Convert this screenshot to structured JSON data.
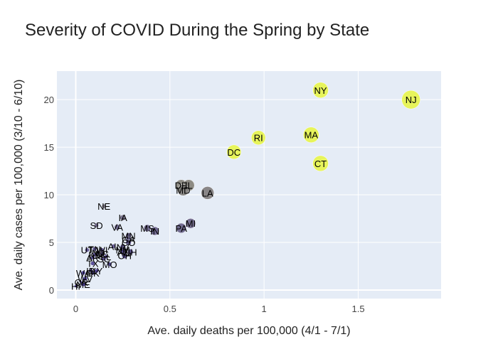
{
  "chart_data": {
    "type": "scatter",
    "title": "Severity of COVID During the Spring by State",
    "xlabel": "Ave. daily deaths per 100,000 (4/1 - 7/1)",
    "ylabel": "Ave. daily cases per 100,000 (3/10 - 6/10)",
    "xlim": [
      -0.1,
      1.94
    ],
    "ylim": [
      -0.9,
      23.0
    ],
    "xticks": [
      0,
      0.5,
      1,
      1.5
    ],
    "xtick_labels": [
      "0",
      "0.5",
      "1",
      "1.5"
    ],
    "yticks": [
      0,
      5,
      10,
      15,
      20
    ],
    "ytick_labels": [
      "0",
      "5",
      "10",
      "15",
      "20"
    ],
    "grid": true,
    "legend": "none",
    "colors": {
      "plot_bg": "#e5ecf6",
      "grid": "#ffffff",
      "low": "#3b2d9a",
      "high": "#e7f54a"
    },
    "points": [
      {
        "label": "NY",
        "x": 1.3,
        "y": 21.0,
        "size": 10
      },
      {
        "label": "NJ",
        "x": 1.78,
        "y": 20.0,
        "size": 12
      },
      {
        "label": "RI",
        "x": 0.97,
        "y": 16.0,
        "size": 9
      },
      {
        "label": "MA",
        "x": 1.25,
        "y": 16.3,
        "size": 10
      },
      {
        "label": "DC",
        "x": 0.84,
        "y": 14.5,
        "size": 9
      },
      {
        "label": "CT",
        "x": 1.3,
        "y": 13.3,
        "size": 10
      },
      {
        "label": "DE",
        "x": 0.56,
        "y": 11.0,
        "size": 7
      },
      {
        "label": "IL",
        "x": 0.6,
        "y": 11.0,
        "size": 7
      },
      {
        "label": "MD",
        "x": 0.57,
        "y": 10.5,
        "size": 7
      },
      {
        "label": "LA",
        "x": 0.7,
        "y": 10.2,
        "size": 8
      },
      {
        "label": "NE",
        "x": 0.15,
        "y": 8.8,
        "size": 2
      },
      {
        "label": "IA",
        "x": 0.25,
        "y": 7.6,
        "size": 3
      },
      {
        "label": "SD",
        "x": 0.11,
        "y": 6.8,
        "size": 2
      },
      {
        "label": "VA",
        "x": 0.22,
        "y": 6.6,
        "size": 3
      },
      {
        "label": "MS",
        "x": 0.38,
        "y": 6.5,
        "size": 4
      },
      {
        "label": "IN",
        "x": 0.42,
        "y": 6.2,
        "size": 5
      },
      {
        "label": "PA",
        "x": 0.56,
        "y": 6.5,
        "size": 6
      },
      {
        "label": "MI",
        "x": 0.61,
        "y": 7.0,
        "size": 6
      },
      {
        "label": "MN",
        "x": 0.28,
        "y": 5.7,
        "size": 3
      },
      {
        "label": "GA",
        "x": 0.28,
        "y": 5.3,
        "size": 3
      },
      {
        "label": "CO",
        "x": 0.28,
        "y": 5.0,
        "size": 3
      },
      {
        "label": "AL",
        "x": 0.2,
        "y": 4.6,
        "size": 2
      },
      {
        "label": "NV",
        "x": 0.25,
        "y": 4.5,
        "size": 3
      },
      {
        "label": "NH",
        "x": 0.29,
        "y": 4.0,
        "size": 3
      },
      {
        "label": "NM",
        "x": 0.25,
        "y": 4.2,
        "size": 3
      },
      {
        "label": "AZ",
        "x": 0.25,
        "y": 4.0,
        "size": 3
      },
      {
        "label": "OH",
        "x": 0.26,
        "y": 3.6,
        "size": 3
      },
      {
        "label": "UT",
        "x": 0.06,
        "y": 4.2,
        "size": 2
      },
      {
        "label": "TN",
        "x": 0.1,
        "y": 4.3,
        "size": 2
      },
      {
        "label": "WI",
        "x": 0.14,
        "y": 4.2,
        "size": 2
      },
      {
        "label": "ND",
        "x": 0.12,
        "y": 3.9,
        "size": 2
      },
      {
        "label": "NC",
        "x": 0.14,
        "y": 3.8,
        "size": 2
      },
      {
        "label": "KS",
        "x": 0.1,
        "y": 3.7,
        "size": 2
      },
      {
        "label": "AR",
        "x": 0.09,
        "y": 3.4,
        "size": 2
      },
      {
        "label": "SC",
        "x": 0.15,
        "y": 3.3,
        "size": 2
      },
      {
        "label": "FL",
        "x": 0.16,
        "y": 3.5,
        "size": 2
      },
      {
        "label": "TX",
        "x": 0.09,
        "y": 2.8,
        "size": 2
      },
      {
        "label": "MO",
        "x": 0.18,
        "y": 2.7,
        "size": 2
      },
      {
        "label": "KY",
        "x": 0.11,
        "y": 2.0,
        "size": 2
      },
      {
        "label": "ID",
        "x": 0.08,
        "y": 2.0,
        "size": 2
      },
      {
        "label": "OK",
        "x": 0.09,
        "y": 1.8,
        "size": 2
      },
      {
        "label": "WA",
        "x": 0.04,
        "y": 1.8,
        "size": 2
      },
      {
        "label": "WV",
        "x": 0.05,
        "y": 1.2,
        "size": 2
      },
      {
        "label": "ME",
        "x": 0.04,
        "y": 0.6,
        "size": 2
      },
      {
        "label": "OR",
        "x": 0.03,
        "y": 0.8,
        "size": 1
      },
      {
        "label": "HI",
        "x": 0.0,
        "y": 0.4,
        "size": 1
      }
    ]
  }
}
